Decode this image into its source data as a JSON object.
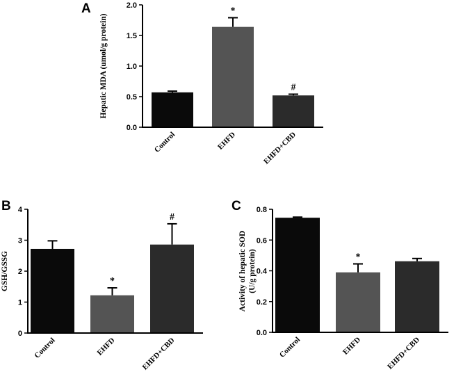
{
  "chart_data": [
    {
      "panel": "A",
      "type": "bar",
      "categories": [
        "Control",
        "EHFD",
        "EHFD+CBD"
      ],
      "values": [
        0.57,
        1.64,
        0.52
      ],
      "errors": [
        0.02,
        0.15,
        0.02
      ],
      "annotations": [
        "",
        "*",
        "#"
      ],
      "colors": [
        "#0a0a0a",
        "#545454",
        "#2b2b2b"
      ],
      "ylabel": "Hepatic MDA (umol/g protein)",
      "ylim": [
        0,
        2.0
      ],
      "yticks": [
        0.0,
        0.5,
        1.0,
        1.5,
        2.0
      ],
      "ytick_labels": [
        "0.0",
        "0.5",
        "1.0",
        "1.5",
        "2.0"
      ]
    },
    {
      "panel": "B",
      "type": "bar",
      "categories": [
        "Control",
        "EHFD",
        "EHFD+CBD"
      ],
      "values": [
        2.72,
        1.22,
        2.86
      ],
      "errors": [
        0.26,
        0.24,
        0.67
      ],
      "annotations": [
        "",
        "*",
        "#"
      ],
      "colors": [
        "#0a0a0a",
        "#545454",
        "#2b2b2b"
      ],
      "ylabel": "GSH/GSSG",
      "ylim": [
        0,
        4
      ],
      "yticks": [
        0,
        1,
        2,
        3,
        4
      ],
      "ytick_labels": [
        "0",
        "1",
        "2",
        "3",
        "4"
      ]
    },
    {
      "panel": "C",
      "type": "bar",
      "categories": [
        "Control",
        "EHFD",
        "EHFD+CBD"
      ],
      "values": [
        0.745,
        0.39,
        0.462
      ],
      "errors": [
        0.004,
        0.055,
        0.018
      ],
      "annotations": [
        "",
        "*",
        ""
      ],
      "colors": [
        "#0a0a0a",
        "#545454",
        "#2b2b2b"
      ],
      "ylabel": [
        "Activity of hepatic SOD",
        "(U/g protein)"
      ],
      "ylim": [
        0,
        0.8
      ],
      "yticks": [
        0.0,
        0.2,
        0.4,
        0.6,
        0.8
      ],
      "ytick_labels": [
        "0.0",
        "0.2",
        "0.4",
        "0.6",
        "0.8"
      ]
    }
  ]
}
